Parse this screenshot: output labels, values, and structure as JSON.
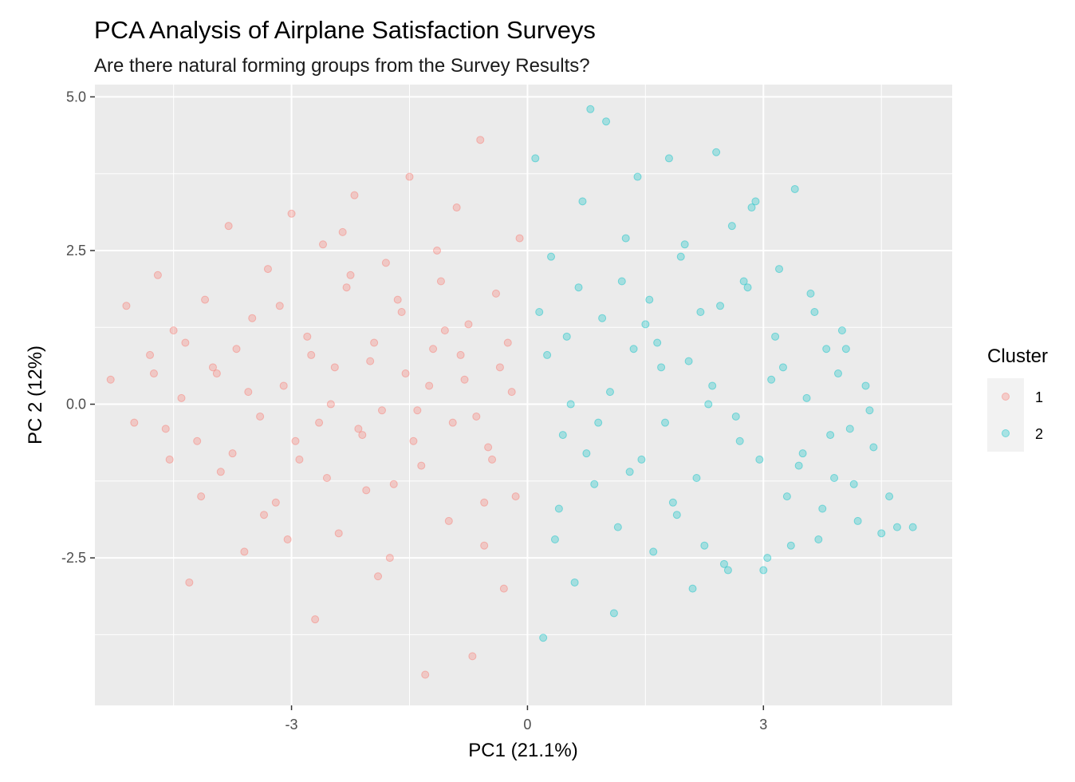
{
  "chart_data": {
    "type": "scatter",
    "title": "PCA Analysis of Airplane Satisfaction Surveys",
    "subtitle": "Are there natural forming groups from the Survey Results?",
    "xlabel": "PC1 (21.1%)",
    "ylabel": "PC 2 (12%)",
    "xlim": [
      -5.5,
      5.4
    ],
    "ylim": [
      -4.9,
      5.2
    ],
    "x_ticks": [
      -3,
      0,
      3
    ],
    "x_tick_labels": [
      "-3",
      "0",
      "3"
    ],
    "y_ticks": [
      -2.5,
      0.0,
      2.5,
      5.0
    ],
    "y_tick_labels": [
      "-2.5",
      "0.0",
      "2.5",
      "5.0"
    ],
    "grid": true,
    "legend": {
      "title": "Cluster",
      "position": "right",
      "entries": [
        {
          "label": "1",
          "color": "#F8766D"
        },
        {
          "label": "2",
          "color": "#00BFC4"
        }
      ]
    },
    "series": [
      {
        "name": "1",
        "color": "#F8766D",
        "points": [
          [
            -5.3,
            0.4
          ],
          [
            -5.1,
            1.6
          ],
          [
            -5.0,
            -0.3
          ],
          [
            -4.8,
            0.8
          ],
          [
            -4.7,
            2.1
          ],
          [
            -4.6,
            -0.4
          ],
          [
            -4.5,
            1.2
          ],
          [
            -4.4,
            0.1
          ],
          [
            -4.3,
            -2.9
          ],
          [
            -4.2,
            -0.6
          ],
          [
            -4.1,
            1.7
          ],
          [
            -4.0,
            0.6
          ],
          [
            -3.9,
            -1.1
          ],
          [
            -3.8,
            2.9
          ],
          [
            -3.7,
            0.9
          ],
          [
            -3.6,
            -2.4
          ],
          [
            -3.5,
            1.4
          ],
          [
            -3.4,
            -0.2
          ],
          [
            -3.3,
            2.2
          ],
          [
            -3.2,
            -1.6
          ],
          [
            -3.1,
            0.3
          ],
          [
            -3.0,
            3.1
          ],
          [
            -2.9,
            -0.9
          ],
          [
            -2.8,
            1.1
          ],
          [
            -2.7,
            -3.5
          ],
          [
            -2.6,
            2.6
          ],
          [
            -2.5,
            0.0
          ],
          [
            -2.4,
            -2.1
          ],
          [
            -2.3,
            1.9
          ],
          [
            -2.2,
            3.4
          ],
          [
            -2.1,
            -0.5
          ],
          [
            -2.0,
            0.7
          ],
          [
            -1.9,
            -2.8
          ],
          [
            -1.8,
            2.3
          ],
          [
            -1.7,
            -1.3
          ],
          [
            -1.6,
            1.5
          ],
          [
            -1.5,
            3.7
          ],
          [
            -1.4,
            -0.1
          ],
          [
            -1.3,
            -4.4
          ],
          [
            -1.2,
            0.9
          ],
          [
            -1.1,
            2.0
          ],
          [
            -1.0,
            -1.9
          ],
          [
            -0.9,
            3.2
          ],
          [
            -0.8,
            0.4
          ],
          [
            -0.7,
            -4.1
          ],
          [
            -0.6,
            4.3
          ],
          [
            -0.5,
            -0.7
          ],
          [
            -0.4,
            1.8
          ],
          [
            -0.3,
            -3.0
          ],
          [
            -0.2,
            0.2
          ],
          [
            -0.1,
            2.7
          ],
          [
            -0.15,
            -1.5
          ],
          [
            -0.35,
            0.6
          ],
          [
            -0.55,
            -2.3
          ],
          [
            -0.75,
            1.3
          ],
          [
            -0.95,
            -0.3
          ],
          [
            -1.15,
            2.5
          ],
          [
            -1.35,
            -1.0
          ],
          [
            -1.55,
            0.5
          ],
          [
            -1.75,
            -2.5
          ],
          [
            -1.95,
            1.0
          ],
          [
            -2.15,
            -0.4
          ],
          [
            -2.35,
            2.8
          ],
          [
            -2.55,
            -1.2
          ],
          [
            -2.75,
            0.8
          ],
          [
            -2.95,
            -0.6
          ],
          [
            -3.15,
            1.6
          ],
          [
            -3.35,
            -1.8
          ],
          [
            -3.55,
            0.2
          ],
          [
            -3.75,
            -0.8
          ],
          [
            -3.95,
            0.5
          ],
          [
            -4.15,
            -1.5
          ],
          [
            -4.35,
            1.0
          ],
          [
            -4.55,
            -0.9
          ],
          [
            -4.75,
            0.5
          ],
          [
            -1.85,
            -0.1
          ],
          [
            -1.25,
            0.3
          ],
          [
            -0.65,
            -0.2
          ],
          [
            -2.45,
            0.6
          ],
          [
            -1.05,
            1.2
          ],
          [
            -0.45,
            -0.9
          ],
          [
            -2.05,
            -1.4
          ],
          [
            -1.45,
            -0.6
          ],
          [
            -0.85,
            0.8
          ],
          [
            -2.65,
            -0.3
          ],
          [
            -1.65,
            1.7
          ],
          [
            -0.25,
            1.0
          ],
          [
            -3.05,
            -2.2
          ],
          [
            -2.25,
            2.1
          ],
          [
            -0.55,
            -1.6
          ]
        ]
      },
      {
        "name": "2",
        "color": "#00BFC4",
        "points": [
          [
            0.1,
            4.0
          ],
          [
            0.2,
            -3.8
          ],
          [
            0.3,
            2.4
          ],
          [
            0.4,
            -1.7
          ],
          [
            0.5,
            1.1
          ],
          [
            0.6,
            -2.9
          ],
          [
            0.7,
            3.3
          ],
          [
            0.8,
            4.8
          ],
          [
            0.9,
            -0.3
          ],
          [
            1.0,
            4.6
          ],
          [
            1.1,
            -3.4
          ],
          [
            1.2,
            2.0
          ],
          [
            1.3,
            -1.1
          ],
          [
            1.4,
            3.7
          ],
          [
            1.5,
            1.3
          ],
          [
            1.6,
            -2.4
          ],
          [
            1.7,
            0.6
          ],
          [
            1.8,
            4.0
          ],
          [
            1.9,
            -1.8
          ],
          [
            2.0,
            2.6
          ],
          [
            2.1,
            -3.0
          ],
          [
            2.2,
            1.5
          ],
          [
            2.3,
            0.0
          ],
          [
            2.4,
            4.1
          ],
          [
            2.5,
            -2.6
          ],
          [
            2.6,
            2.9
          ],
          [
            2.7,
            -0.6
          ],
          [
            2.8,
            1.9
          ],
          [
            2.9,
            3.3
          ],
          [
            3.0,
            -2.7
          ],
          [
            3.1,
            0.4
          ],
          [
            3.2,
            2.2
          ],
          [
            3.3,
            -1.5
          ],
          [
            3.4,
            3.5
          ],
          [
            3.5,
            -0.8
          ],
          [
            3.6,
            1.8
          ],
          [
            3.7,
            -2.2
          ],
          [
            3.8,
            0.9
          ],
          [
            3.9,
            -1.2
          ],
          [
            4.0,
            1.2
          ],
          [
            4.1,
            -0.4
          ],
          [
            4.2,
            -1.9
          ],
          [
            4.3,
            0.3
          ],
          [
            4.4,
            -0.7
          ],
          [
            4.5,
            -2.1
          ],
          [
            4.6,
            -1.5
          ],
          [
            4.7,
            -2.0
          ],
          [
            4.9,
            -2.0
          ],
          [
            0.25,
            0.8
          ],
          [
            0.45,
            -0.5
          ],
          [
            0.65,
            1.9
          ],
          [
            0.85,
            -1.3
          ],
          [
            1.05,
            0.2
          ],
          [
            1.25,
            2.7
          ],
          [
            1.45,
            -0.9
          ],
          [
            1.65,
            1.0
          ],
          [
            1.85,
            -1.6
          ],
          [
            2.05,
            0.7
          ],
          [
            2.25,
            -2.3
          ],
          [
            2.45,
            1.6
          ],
          [
            2.65,
            -0.2
          ],
          [
            2.85,
            3.2
          ],
          [
            3.05,
            -2.5
          ],
          [
            3.25,
            0.6
          ],
          [
            3.45,
            -1.0
          ],
          [
            3.65,
            1.5
          ],
          [
            3.85,
            -0.5
          ],
          [
            4.05,
            0.9
          ],
          [
            0.15,
            1.5
          ],
          [
            0.35,
            -2.2
          ],
          [
            0.55,
            0.0
          ],
          [
            0.75,
            -0.8
          ],
          [
            0.95,
            1.4
          ],
          [
            1.15,
            -2.0
          ],
          [
            1.35,
            0.9
          ],
          [
            1.55,
            1.7
          ],
          [
            1.75,
            -0.3
          ],
          [
            1.95,
            2.4
          ],
          [
            2.15,
            -1.2
          ],
          [
            2.35,
            0.3
          ],
          [
            2.55,
            -2.7
          ],
          [
            2.75,
            2.0
          ],
          [
            2.95,
            -0.9
          ],
          [
            3.15,
            1.1
          ],
          [
            3.35,
            -2.3
          ],
          [
            3.55,
            0.1
          ],
          [
            3.75,
            -1.7
          ],
          [
            3.95,
            0.5
          ],
          [
            4.15,
            -1.3
          ],
          [
            4.35,
            -0.1
          ]
        ]
      }
    ]
  }
}
